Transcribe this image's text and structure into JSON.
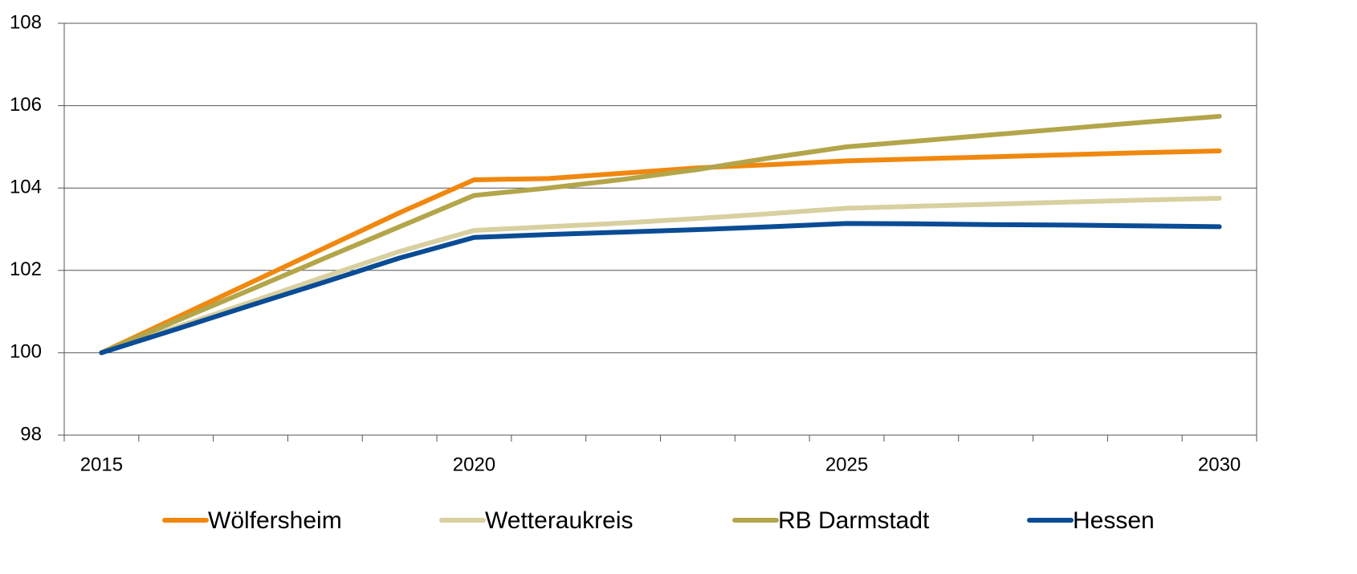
{
  "chart_data": {
    "type": "line",
    "categories": [
      "2015",
      null,
      null,
      null,
      null,
      "2020",
      null,
      null,
      null,
      null,
      "2025",
      null,
      null,
      null,
      null,
      "2030"
    ],
    "series": [
      {
        "name": "Wölfersheim",
        "color": "#f0880f",
        "values": [
          100,
          100.85,
          101.7,
          102.55,
          103.4,
          104.2,
          104.23,
          104.36,
          104.49,
          104.57,
          104.66,
          104.71,
          104.76,
          104.81,
          104.86,
          104.9
        ]
      },
      {
        "name": "Wetteraukreis",
        "color": "#d8d0a0",
        "values": [
          100,
          100.62,
          101.23,
          101.85,
          102.46,
          102.97,
          103.06,
          103.15,
          103.26,
          103.38,
          103.51,
          103.56,
          103.61,
          103.66,
          103.71,
          103.75
        ]
      },
      {
        "name": "RB Darmstadt",
        "color": "#b3a54a",
        "values": [
          100,
          100.77,
          101.53,
          102.3,
          103.06,
          103.82,
          104.0,
          104.21,
          104.45,
          104.74,
          105.0,
          105.15,
          105.3,
          105.45,
          105.6,
          105.74
        ]
      },
      {
        "name": "Hessen",
        "color": "#0a4c95",
        "values": [
          100,
          100.57,
          101.15,
          101.72,
          102.3,
          102.8,
          102.87,
          102.93,
          102.99,
          103.06,
          103.14,
          103.13,
          103.11,
          103.1,
          103.08,
          103.06
        ]
      }
    ],
    "ylim": [
      98,
      108
    ],
    "yticks": [
      98,
      100,
      102,
      104,
      106,
      108
    ],
    "grid": true,
    "legend": "bottom"
  }
}
